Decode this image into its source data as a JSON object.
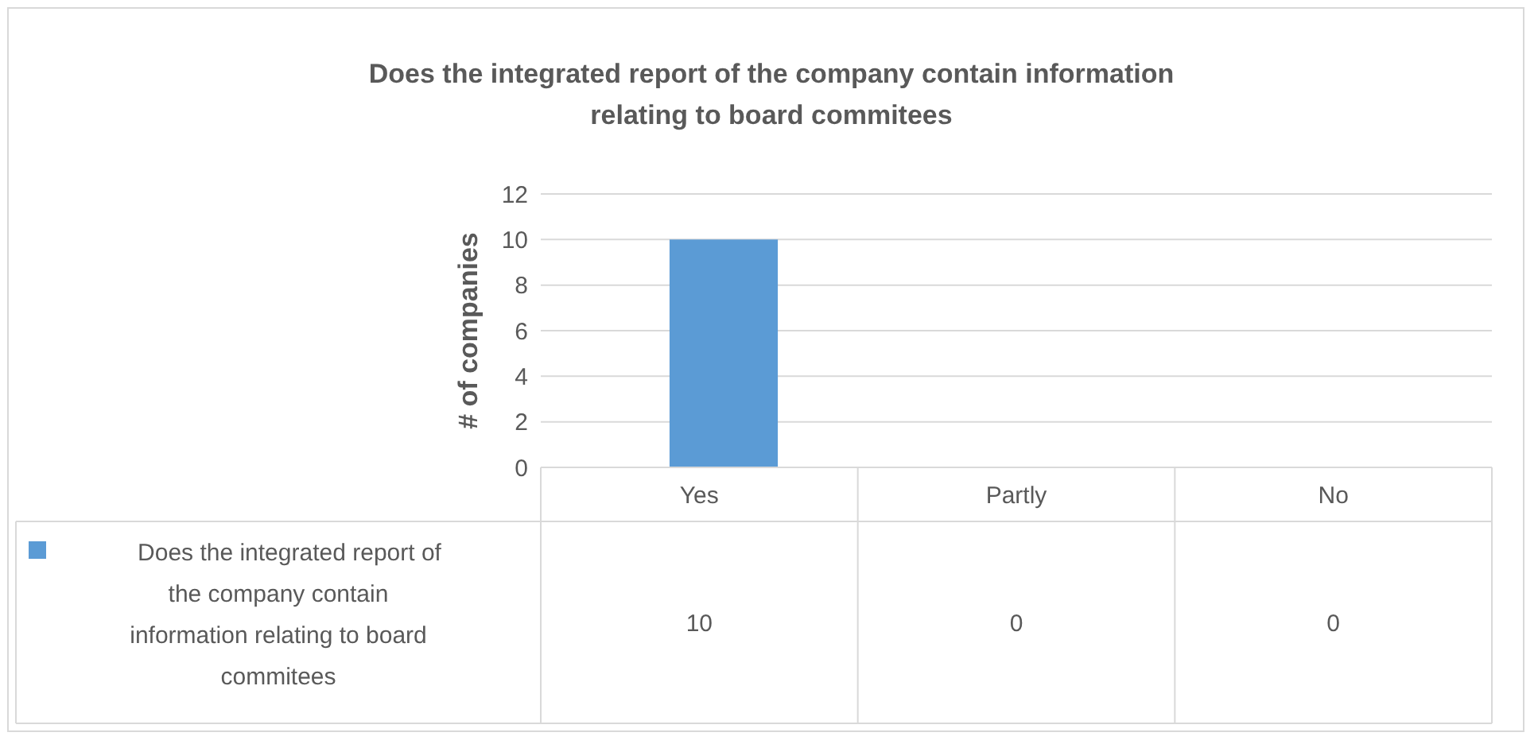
{
  "chart_data": {
    "type": "bar",
    "title": "Does the integrated report of the company contain information relating to board commitees",
    "ylabel": "# of companies",
    "categories": [
      "Yes",
      "Partly",
      "No"
    ],
    "series": [
      {
        "name": "Does the integrated report of the company contain information relating to board commitees",
        "color": "#5b9bd5",
        "values": [
          10,
          0,
          0
        ]
      }
    ],
    "ylim": [
      0,
      12
    ],
    "yticks": [
      0,
      2,
      4,
      6,
      8,
      10,
      12
    ],
    "grid": "y",
    "data_labels": true,
    "legend": "bottom"
  }
}
